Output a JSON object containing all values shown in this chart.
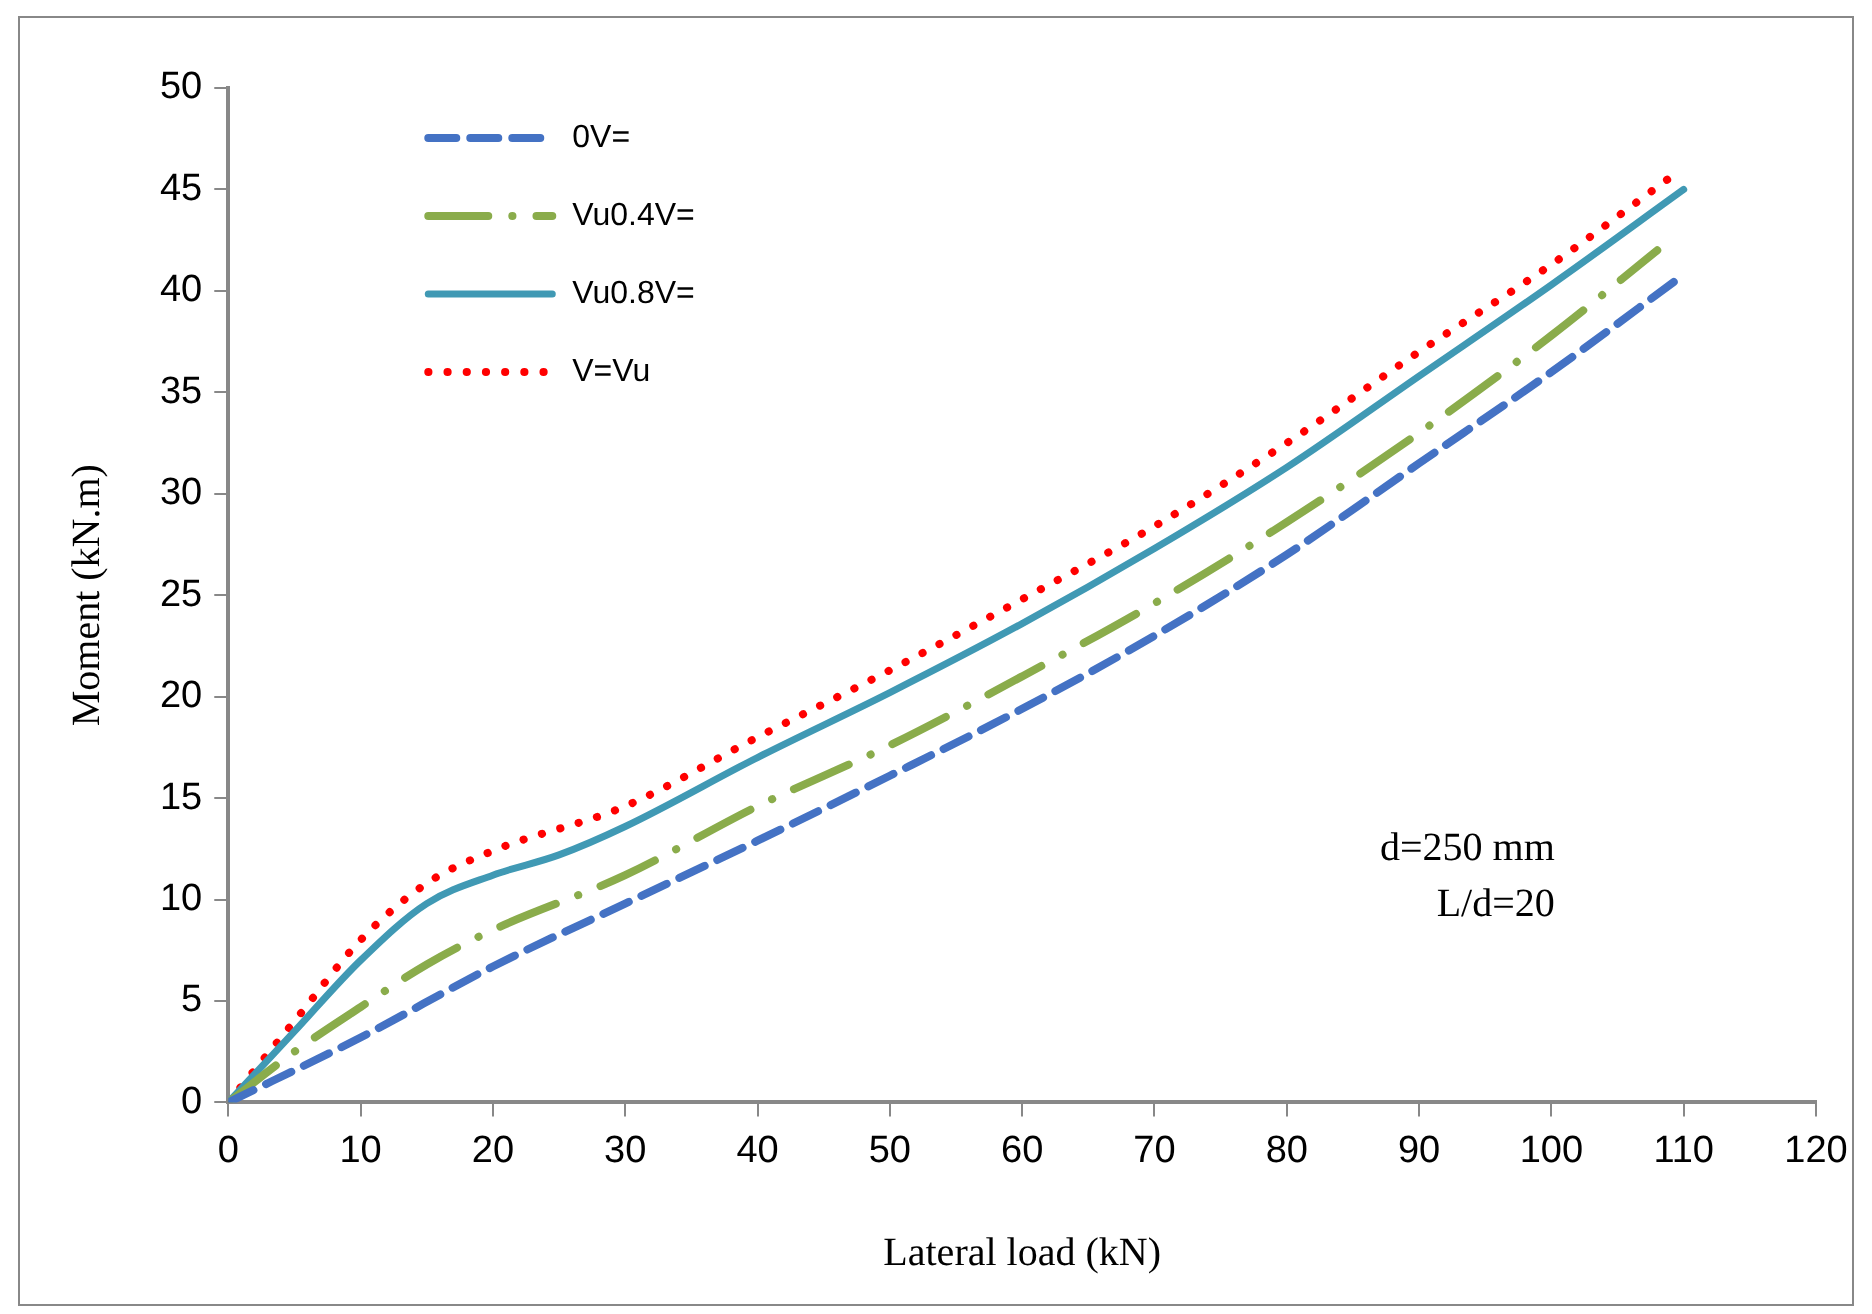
{
  "chart_data": {
    "type": "line",
    "xlabel": "Lateral load (kN)",
    "ylabel": "Moment (kN.m)",
    "xlim": [
      0,
      120
    ],
    "xticks": [
      0,
      10,
      20,
      30,
      40,
      50,
      60,
      70,
      80,
      90,
      100,
      110,
      120
    ],
    "ylim": [
      0,
      50
    ],
    "yticks": [
      0,
      5,
      10,
      15,
      20,
      25,
      30,
      35,
      40,
      45,
      50
    ],
    "grid": false,
    "legend": "top left",
    "marker": "none",
    "annotations": [
      "d=250 mm",
      "L/d=20"
    ],
    "series": [
      {
        "name": "0V=",
        "color": "#4472c4",
        "line_style": "dashed",
        "x": [
          0,
          10,
          20,
          30,
          40,
          50,
          60,
          70,
          80,
          90,
          100,
          110
        ],
        "values": [
          0,
          3.2,
          6.7,
          9.8,
          12.9,
          16.1,
          19.4,
          23,
          27,
          31.5,
          36,
          40.8
        ]
      },
      {
        "name": "Vu0.4V=",
        "color": "#8aac4b",
        "line_style": "dashdot",
        "x": [
          0,
          5,
          10,
          15,
          20,
          30,
          40,
          50,
          60,
          70,
          80,
          90,
          100,
          108
        ],
        "values": [
          0,
          2.5,
          4.7,
          6.8,
          8.5,
          11.2,
          14.6,
          17.6,
          21,
          24.6,
          28.6,
          33,
          37.8,
          42
        ]
      },
      {
        "name": "Vu0.8V=",
        "color": "#4099b4",
        "line_style": "solid",
        "x": [
          0,
          5,
          10,
          15,
          20,
          25,
          30,
          40,
          50,
          60,
          70,
          80,
          90,
          100,
          110
        ],
        "values": [
          0,
          3.5,
          7,
          9.8,
          11.2,
          12.2,
          13.6,
          17,
          20.2,
          23.6,
          27.3,
          31.3,
          35.8,
          40.3,
          45
        ]
      },
      {
        "name": "V=Vu",
        "color": "#ff0000",
        "line_style": "dotted",
        "x": [
          0,
          5,
          10,
          15,
          20,
          30,
          40,
          50,
          60,
          70,
          80,
          90,
          100,
          109
        ],
        "values": [
          0,
          4,
          8,
          10.8,
          12.4,
          14.6,
          18,
          21.3,
          24.8,
          28.4,
          32.5,
          37,
          41.3,
          45.6
        ]
      }
    ]
  }
}
